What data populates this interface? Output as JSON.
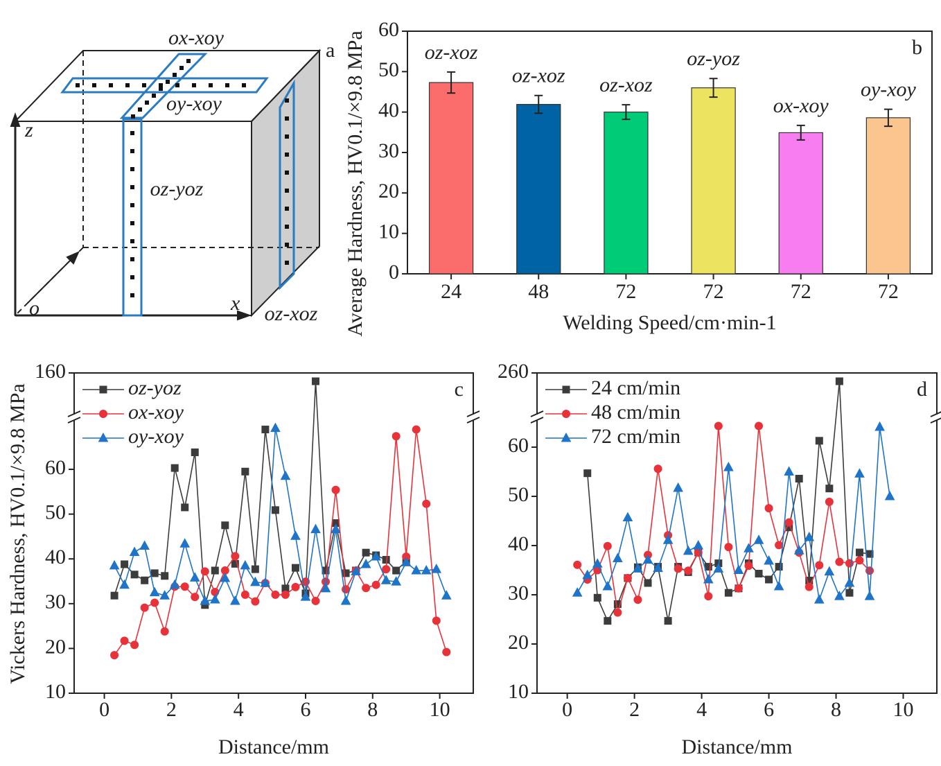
{
  "diagram": {
    "panel": "a",
    "labels": [
      "ox-xoy",
      "oy-xoy",
      "oz-yoz",
      "oz-xoz",
      "z",
      "x",
      "o"
    ]
  },
  "chart_data": [
    {
      "type": "bar",
      "panel": "b",
      "xlabel": "Welding Speed/cm·min-1",
      "ylabel": "Average Hardness, HV0.1/×9.8 MPa",
      "categories": [
        "24",
        "48",
        "72",
        "72",
        "72",
        "72"
      ],
      "values": [
        47.3,
        41.9,
        40.0,
        46.0,
        34.9,
        38.6
      ],
      "errors": [
        2.6,
        2.2,
        1.8,
        2.3,
        1.8,
        2.1
      ],
      "bar_labels": [
        "oz-xoz",
        "oz-xoz",
        "oz-xoz",
        "oz-yoz",
        "ox-xoy",
        "oy-xoy"
      ],
      "colors": [
        "#fb6c6c",
        "#0064a4",
        "#00cc77",
        "#ece35f",
        "#f77df0",
        "#fbc590"
      ],
      "ylim": [
        0,
        60
      ],
      "yticks": [
        0,
        10,
        20,
        30,
        40,
        50,
        60
      ]
    },
    {
      "type": "line",
      "panel": "c",
      "xlabel": "Distance/mm",
      "ylabel": "Vickers Hardness, HV0.1/×9.8 MPa",
      "xlim": [
        -0.9,
        11
      ],
      "xticks": [
        0,
        2,
        4,
        6,
        8,
        10
      ],
      "ylim": [
        10,
        160
      ],
      "ybreak": [
        71,
        150
      ],
      "yticks": [
        10,
        20,
        30,
        40,
        50,
        60,
        160
      ],
      "legend": "upper left",
      "legend_italic": true,
      "series": [
        {
          "name": "oz-yoz",
          "color": "#3c3c3c",
          "marker": "square",
          "x": [
            0.3,
            0.6,
            0.9,
            1.2,
            1.5,
            1.8,
            2.1,
            2.4,
            2.7,
            3.0,
            3.3,
            3.6,
            3.9,
            4.2,
            4.5,
            4.8,
            5.1,
            5.4,
            5.7,
            6.0,
            6.3,
            6.6,
            6.9,
            7.2,
            7.5,
            7.8,
            8.1,
            8.4,
            8.7,
            9.0
          ],
          "values": [
            31.8,
            38.8,
            36.5,
            35.2,
            36.8,
            36.2,
            60.3,
            51.5,
            63.8,
            29.7,
            37.4,
            47.5,
            38.9,
            59.5,
            37.7,
            68.9,
            50.9,
            33.4,
            38.0,
            32.3,
            158,
            37.4,
            48.0,
            36.8,
            37.4,
            41.4,
            40.8,
            39.8,
            37.4,
            39.5
          ]
        },
        {
          "name": "ox-xoy",
          "color": "#e8323a",
          "marker": "circle",
          "x": [
            0.3,
            0.6,
            0.9,
            1.2,
            1.5,
            1.8,
            2.1,
            2.4,
            2.7,
            3.0,
            3.3,
            3.6,
            3.9,
            4.2,
            4.5,
            4.8,
            5.1,
            5.4,
            5.7,
            6.0,
            6.3,
            6.6,
            6.9,
            7.2,
            7.5,
            7.8,
            8.1,
            8.4,
            8.7,
            9.0,
            9.3,
            9.6,
            9.9,
            10.2
          ],
          "values": [
            18.5,
            21.7,
            20.8,
            29.1,
            30.2,
            23.8,
            33.8,
            33.8,
            31.5,
            37.2,
            32.6,
            37.4,
            40.6,
            32.0,
            30.5,
            34.6,
            32.0,
            32.0,
            33.7,
            34.9,
            30.6,
            34.9,
            55.4,
            33.2,
            37.4,
            33.5,
            34.2,
            37.7,
            67.4,
            40.5,
            68.9,
            52.3,
            26.2,
            19.2
          ]
        },
        {
          "name": "oy-xoy",
          "color": "#1f74c8",
          "marker": "triangle",
          "x": [
            0.3,
            0.6,
            0.9,
            1.2,
            1.5,
            1.8,
            2.1,
            2.4,
            2.7,
            3.0,
            3.3,
            3.6,
            3.9,
            4.2,
            4.5,
            4.8,
            5.1,
            5.4,
            5.7,
            6.0,
            6.3,
            6.6,
            6.9,
            7.2,
            7.5,
            7.8,
            8.1,
            8.4,
            8.7,
            9.0,
            9.3,
            9.6,
            9.9,
            10.2
          ],
          "values": [
            38.5,
            34.2,
            41.5,
            42.9,
            32.5,
            31.8,
            34.2,
            43.4,
            35.8,
            30.6,
            30.9,
            35.7,
            30.6,
            38.5,
            34.8,
            34.6,
            69.2,
            58.5,
            45.1,
            31.5,
            46.6,
            33.4,
            46.6,
            30.6,
            37.2,
            38.8,
            40.5,
            35.2,
            34.9,
            39.2,
            37.4,
            37.4,
            37.7,
            31.8
          ]
        }
      ]
    },
    {
      "type": "line",
      "panel": "d",
      "xlabel": "Distance/mm",
      "xlim": [
        -0.9,
        11
      ],
      "xticks": [
        0,
        2,
        4,
        6,
        8,
        10
      ],
      "ylim": [
        10,
        260
      ],
      "ybreak": [
        65.5,
        250
      ],
      "yticks": [
        10,
        20,
        30,
        40,
        50,
        60,
        260
      ],
      "legend": "upper left",
      "legend_italic": false,
      "series": [
        {
          "name": "24 cm/min",
          "color": "#3c3c3c",
          "marker": "square",
          "x": [
            0.6,
            0.9,
            1.2,
            1.5,
            1.8,
            2.1,
            2.4,
            2.7,
            3.0,
            3.3,
            3.6,
            3.9,
            4.2,
            4.5,
            4.8,
            5.1,
            5.4,
            5.7,
            6.0,
            6.3,
            6.6,
            6.9,
            7.2,
            7.5,
            7.8,
            8.1,
            8.4,
            8.7,
            9.0
          ],
          "values": [
            54.7,
            29.4,
            24.7,
            28.1,
            33.4,
            35.6,
            32.4,
            35.7,
            24.7,
            35.7,
            34.6,
            38.6,
            35.7,
            36.4,
            30.4,
            31.3,
            36.4,
            34.3,
            33.1,
            35.7,
            43.7,
            53.6,
            32.9,
            61.3,
            51.6,
            258,
            30.4,
            38.6,
            38.3
          ]
        },
        {
          "name": "48 cm/min",
          "color": "#e8323a",
          "marker": "circle",
          "x": [
            0.3,
            0.6,
            0.9,
            1.2,
            1.5,
            1.8,
            2.1,
            2.4,
            2.7,
            3.0,
            3.3,
            3.6,
            3.9,
            4.2,
            4.5,
            4.8,
            5.1,
            5.4,
            5.7,
            6.0,
            6.3,
            6.6,
            6.9,
            7.2,
            7.5,
            7.8,
            8.1,
            8.4,
            8.7,
            9.0
          ],
          "values": [
            36.1,
            33.1,
            35.0,
            39.9,
            26.4,
            33.4,
            29.0,
            38.1,
            55.6,
            42.1,
            35.3,
            34.9,
            38.6,
            29.7,
            64.3,
            39.7,
            31.3,
            35.9,
            64.3,
            47.6,
            40.1,
            44.7,
            38.6,
            31.6,
            36.0,
            48.9,
            36.7,
            36.4,
            37.0,
            34.9
          ]
        },
        {
          "name": "72 cm/min",
          "color": "#1f74c8",
          "marker": "triangle",
          "x": [
            0.3,
            0.6,
            0.9,
            1.2,
            1.5,
            1.8,
            2.1,
            2.4,
            2.7,
            3.0,
            3.3,
            3.6,
            3.9,
            4.2,
            4.5,
            4.8,
            5.1,
            5.4,
            5.7,
            6.0,
            6.3,
            6.6,
            6.9,
            7.2,
            7.5,
            7.8,
            8.1,
            8.4,
            8.7,
            9.0,
            9.3,
            9.6
          ],
          "values": [
            30.4,
            34.0,
            36.3,
            31.7,
            37.4,
            45.7,
            35.3,
            37.1,
            35.4,
            41.1,
            51.7,
            38.9,
            40.0,
            33.1,
            35.3,
            55.9,
            35.0,
            39.4,
            41.1,
            36.9,
            31.7,
            55.0,
            39.0,
            41.7,
            29.0,
            34.7,
            29.7,
            32.4,
            54.6,
            29.7,
            64.1,
            50.0
          ]
        }
      ]
    }
  ]
}
